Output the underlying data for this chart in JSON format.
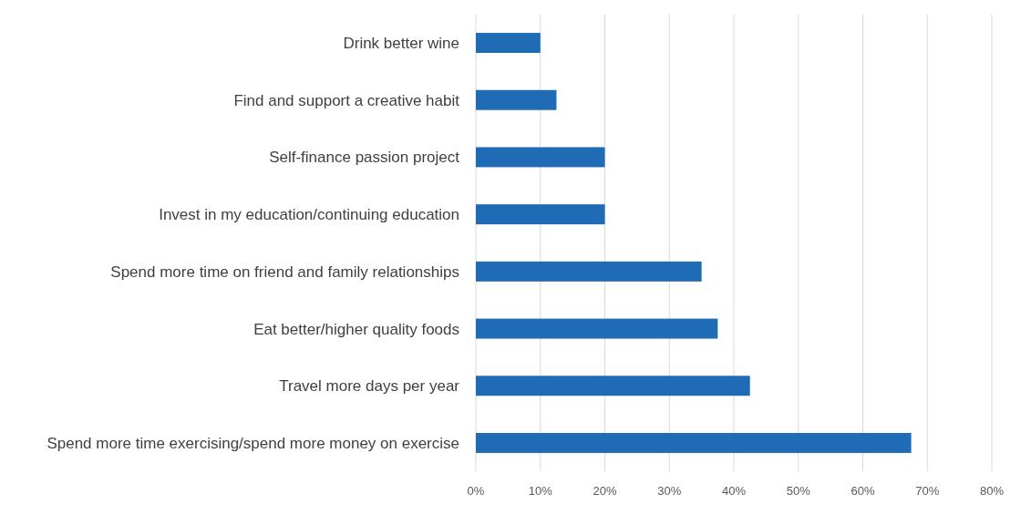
{
  "chart_data": {
    "type": "bar",
    "orientation": "horizontal",
    "categories": [
      "Drink better wine",
      "Find and support a creative habit",
      "Self-finance passion project",
      "Invest in my education/continuing education",
      "Spend more time on friend and family relationships",
      "Eat better/higher quality foods",
      "Travel more days per year",
      "Spend more time exercising/spend more money on exercise"
    ],
    "values": [
      10,
      12.5,
      20,
      20,
      35,
      37.5,
      42.5,
      67.5
    ],
    "color": "#1f6bb5",
    "xlim": [
      0,
      80
    ],
    "xticks": [
      {
        "value": 0,
        "label": "0%"
      },
      {
        "value": 10,
        "label": "10%"
      },
      {
        "value": 20,
        "label": "20%"
      },
      {
        "value": 30,
        "label": "30%"
      },
      {
        "value": 40,
        "label": "40%"
      },
      {
        "value": 50,
        "label": "50%"
      },
      {
        "value": 60,
        "label": "60%"
      },
      {
        "value": 70,
        "label": "70%"
      },
      {
        "value": 80,
        "label": "80%"
      }
    ],
    "grid": "x"
  }
}
